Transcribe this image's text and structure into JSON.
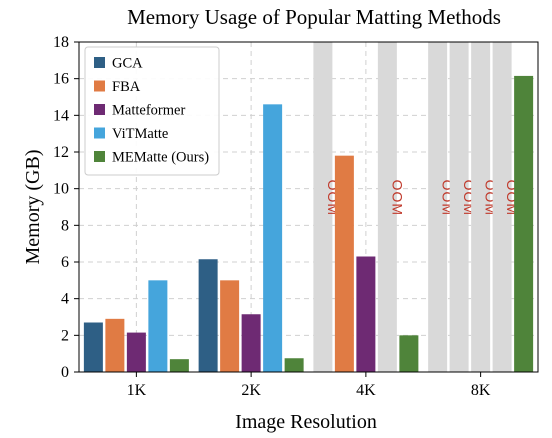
{
  "chart_data": {
    "type": "bar",
    "title": "Memory Usage of Popular Matting Methods",
    "xlabel": "Image Resolution",
    "ylabel": "Memory (GB)",
    "ylim": [
      0,
      18
    ],
    "yticks": [
      0,
      2,
      4,
      6,
      8,
      10,
      12,
      14,
      16,
      18
    ],
    "grid": true,
    "legend_position": "top-left",
    "categories": [
      "1K",
      "2K",
      "4K",
      "8K"
    ],
    "oom_label": "OOM",
    "series": [
      {
        "name": "GCA",
        "color": "#2e5f85",
        "values": [
          2.7,
          6.15,
          null,
          null
        ],
        "oom": [
          false,
          false,
          true,
          true
        ]
      },
      {
        "name": "FBA",
        "color": "#e07b44",
        "values": [
          2.9,
          5.0,
          11.8,
          null
        ],
        "oom": [
          false,
          false,
          false,
          true
        ]
      },
      {
        "name": "Matteformer",
        "color": "#6e2a73",
        "values": [
          2.15,
          3.15,
          6.3,
          null
        ],
        "oom": [
          false,
          false,
          false,
          true
        ]
      },
      {
        "name": "ViTMatte",
        "color": "#45a5dc",
        "values": [
          5.0,
          14.6,
          null,
          null
        ],
        "oom": [
          false,
          false,
          true,
          true
        ]
      },
      {
        "name": "MEMatte (Ours)",
        "color": "#4f843a",
        "values": [
          0.7,
          0.75,
          2.0,
          16.15
        ],
        "oom": [
          false,
          false,
          false,
          false
        ]
      }
    ]
  }
}
